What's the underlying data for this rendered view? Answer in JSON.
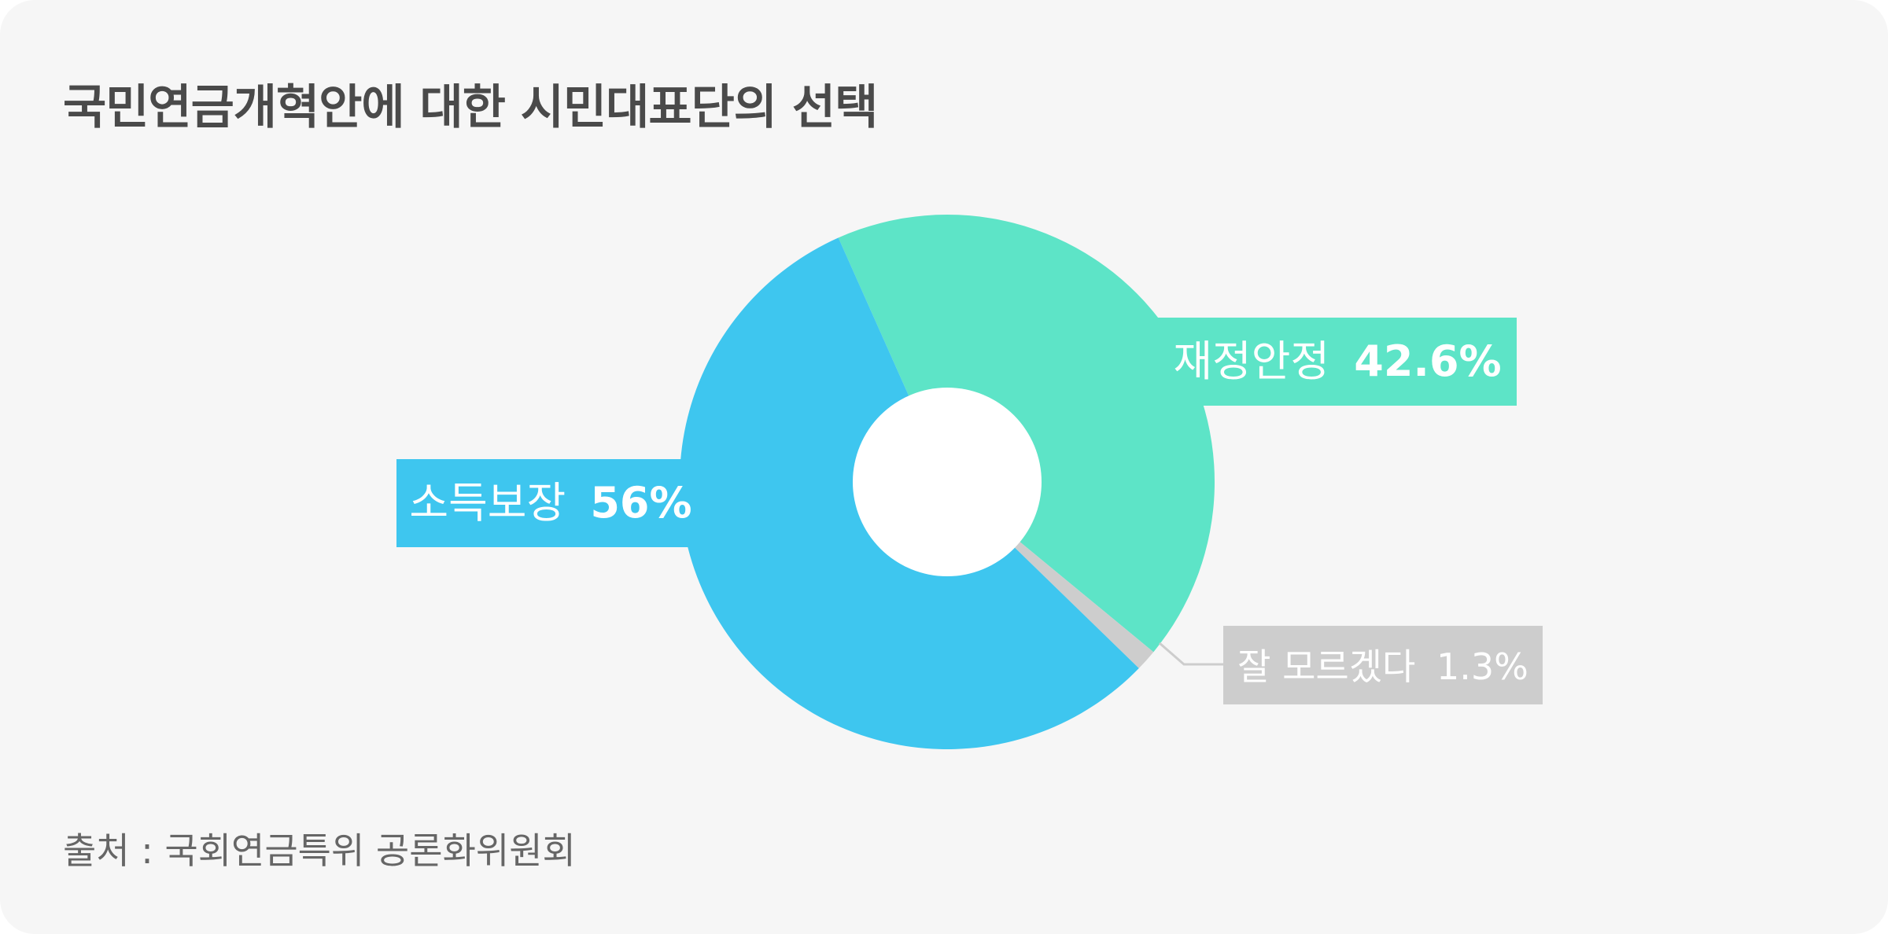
{
  "title": "국민연금개혁안에 대한 시민대표단의 선택",
  "source": "출처 : 국회연금특위 공론화위원회",
  "chart_data": {
    "type": "donut",
    "start_angle_deg": -24,
    "direction": "clockwise",
    "slices": [
      {
        "name": "재정안정",
        "value": 42.6,
        "value_label": "42.6%",
        "color": "#5de4c7"
      },
      {
        "name": "잘 모르겠다",
        "value": 1.3,
        "value_label": "1.3%",
        "color": "#cdcdcd"
      },
      {
        "name": "소득보장",
        "value": 56,
        "value_label": "56%",
        "color": "#3ec6ef"
      }
    ],
    "colors": {
      "background": "#f6f6f6",
      "hole": "#ffffff",
      "leader_line": "#cdcdcd"
    }
  }
}
